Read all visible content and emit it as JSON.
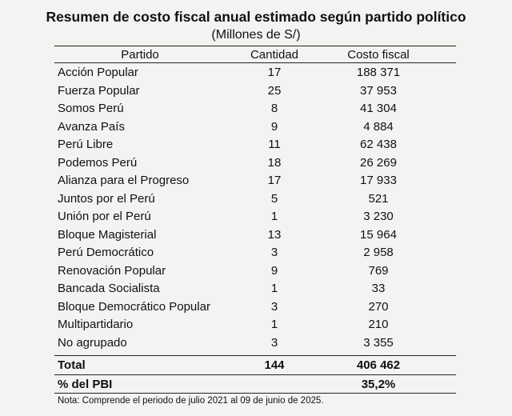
{
  "header": {
    "title": "Resumen de costo fiscal anual estimado según partido político",
    "subtitle": "(Millones de S/)"
  },
  "table": {
    "columns": [
      "Partido",
      "Cantidad",
      "Costo fiscal"
    ],
    "rows": [
      [
        "Acción Popular",
        "17",
        "188 371"
      ],
      [
        "Fuerza Popular",
        "25",
        "37 953"
      ],
      [
        "Somos Perú",
        "8",
        "41 304"
      ],
      [
        "Avanza País",
        "9",
        "4 884"
      ],
      [
        "Perú Libre",
        "11",
        "62 438"
      ],
      [
        "Podemos Perú",
        "18",
        "26 269"
      ],
      [
        "Alianza para el Progreso",
        "17",
        "17 933"
      ],
      [
        "Juntos por el Perú",
        "5",
        "521"
      ],
      [
        "Unión por el Perú",
        "1",
        "3 230"
      ],
      [
        "Bloque Magisterial",
        "13",
        "15 964"
      ],
      [
        "Perú Democrático",
        "3",
        "2 958"
      ],
      [
        "Renovación Popular",
        "9",
        "769"
      ],
      [
        "Bancada Socialista",
        "1",
        "33"
      ],
      [
        "Bloque Democrático Popular",
        "3",
        "270"
      ],
      [
        "Multipartidario",
        "1",
        "210"
      ],
      [
        "No agrupado",
        "3",
        "3 355"
      ]
    ],
    "total": [
      "Total",
      "144",
      "406 462"
    ],
    "pbi": [
      "% del PBI",
      "35,2%"
    ]
  },
  "note": "Nota: Comprende el periodo de julio 2021 al 09 de junio de 2025."
}
